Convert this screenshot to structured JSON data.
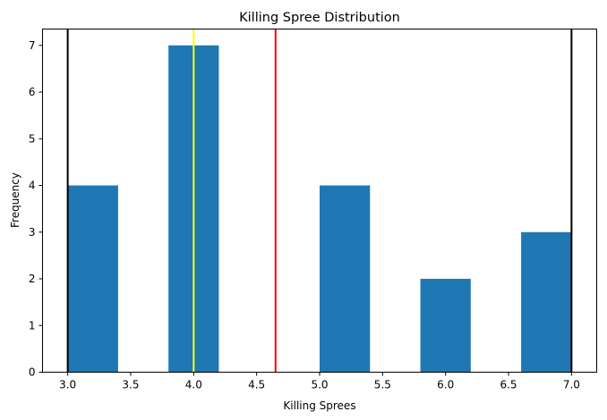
{
  "chart_data": {
    "type": "bar",
    "title": "Killing Spree Distribution",
    "xlabel": "Killing Sprees",
    "ylabel": "Frequency",
    "xlim": [
      2.8,
      7.2
    ],
    "ylim": [
      0,
      7.35
    ],
    "grid": false,
    "bins": [
      {
        "start": 3.0,
        "end": 3.4,
        "count": 4
      },
      {
        "start": 3.4,
        "end": 3.8,
        "count": 0
      },
      {
        "start": 3.8,
        "end": 4.2,
        "count": 7
      },
      {
        "start": 4.2,
        "end": 4.6,
        "count": 0
      },
      {
        "start": 4.6,
        "end": 5.0,
        "count": 0
      },
      {
        "start": 5.0,
        "end": 5.4,
        "count": 4
      },
      {
        "start": 5.4,
        "end": 5.8,
        "count": 0
      },
      {
        "start": 5.8,
        "end": 6.2,
        "count": 2
      },
      {
        "start": 6.2,
        "end": 6.6,
        "count": 0
      },
      {
        "start": 6.6,
        "end": 7.0,
        "count": 3
      }
    ],
    "bar_color": "#1f77b4",
    "xticks": [
      "3.0",
      "3.5",
      "4.0",
      "4.5",
      "5.0",
      "5.5",
      "6.0",
      "6.5",
      "7.0"
    ],
    "xtick_values": [
      3.0,
      3.5,
      4.0,
      4.5,
      5.0,
      5.5,
      6.0,
      6.5,
      7.0
    ],
    "yticks": [
      "0",
      "1",
      "2",
      "3",
      "4",
      "5",
      "6",
      "7"
    ],
    "ytick_values": [
      0,
      1,
      2,
      3,
      4,
      5,
      6,
      7
    ],
    "vlines": [
      {
        "x": 3.0,
        "color": "#000000"
      },
      {
        "x": 7.0,
        "color": "#000000"
      },
      {
        "x": 4.0,
        "color": "#ffff00"
      },
      {
        "x": 4.65,
        "color": "#ff0000"
      }
    ]
  }
}
